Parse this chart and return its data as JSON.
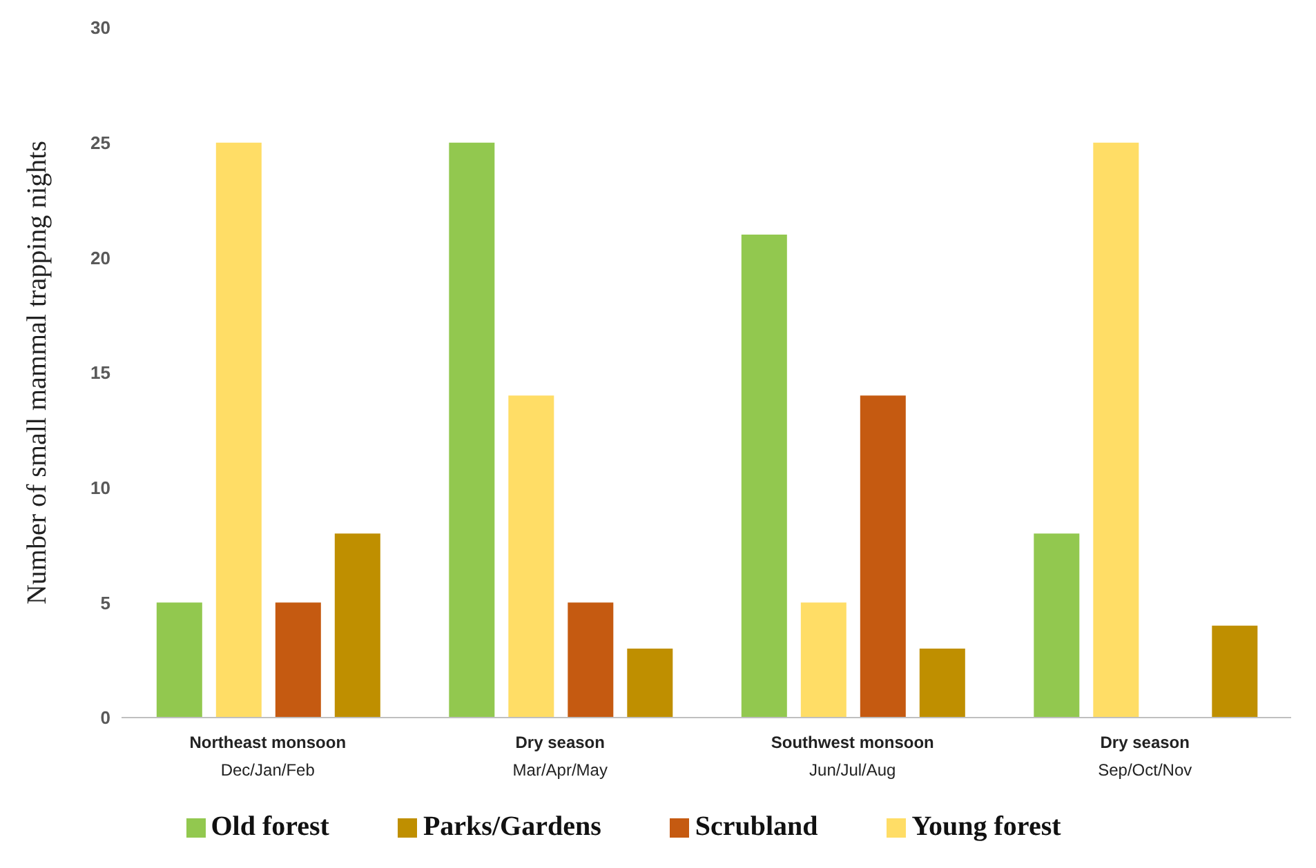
{
  "chart_data": {
    "type": "bar",
    "ylabel": "Number of small mammal trapping nights",
    "categories": [
      "Northeast monsoon\nDec/Jan/Feb",
      "Dry season\nMar/Apr/May",
      "Southwest monsoon\nJun/Jul/Aug",
      "Dry season\nSep/Oct/Nov"
    ],
    "series": [
      {
        "name": "Old forest",
        "color": "#92c84f",
        "values": [
          5,
          25,
          21,
          8
        ]
      },
      {
        "name": "Young forest",
        "color": "#ffdd66",
        "values": [
          25,
          14,
          5,
          25
        ]
      },
      {
        "name": "Scrubland",
        "color": "#c55a11",
        "values": [
          5,
          5,
          14,
          0
        ]
      },
      {
        "name": "Parks/Gardens",
        "color": "#bf8f00",
        "values": [
          8,
          3,
          3,
          4
        ]
      }
    ],
    "ylim": [
      0,
      30
    ],
    "yticks": [
      0,
      5,
      10,
      15,
      20,
      25,
      30
    ],
    "grid": false,
    "legend": "bottom"
  }
}
